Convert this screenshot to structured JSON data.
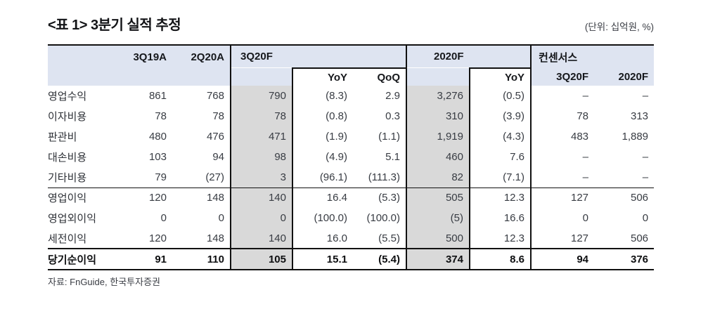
{
  "title": "<표 1> 3분기 실적 추정",
  "unit_note": "(단위: 십억원, %)",
  "source_note": "자료: FnGuide, 한국투자증권",
  "colors": {
    "header_bg": "#dee4f1",
    "highlight_col_bg": "#d9d9d9",
    "border": "#111111"
  },
  "table": {
    "group_headers": {
      "q3_19a": "3Q19A",
      "q2_20a": "2Q20A",
      "q3_20f": "3Q20F",
      "fy2020f": "2020F",
      "consensus": "컨센서스"
    },
    "sub_headers": {
      "yoy_q": "YoY",
      "qoq": "QoQ",
      "yoy_fy": "YoY",
      "cons_3q20f": "3Q20F",
      "cons_2020f": "2020F"
    },
    "rows": [
      {
        "label": "영업수익",
        "values": [
          "861",
          "768",
          "790",
          "(8.3)",
          "2.9",
          "3,276",
          "(0.5)",
          "–",
          "–"
        ]
      },
      {
        "label": "이자비용",
        "values": [
          "78",
          "78",
          "78",
          "(0.8)",
          "0.3",
          "310",
          "(3.9)",
          "78",
          "313"
        ]
      },
      {
        "label": "판관비",
        "values": [
          "480",
          "476",
          "471",
          "(1.9)",
          "(1.1)",
          "1,919",
          "(4.3)",
          "483",
          "1,889"
        ]
      },
      {
        "label": "대손비용",
        "values": [
          "103",
          "94",
          "98",
          "(4.9)",
          "5.1",
          "460",
          "7.6",
          "–",
          "–"
        ]
      },
      {
        "label": "기타비용",
        "values": [
          "79",
          "(27)",
          "3",
          "(96.1)",
          "(111.3)",
          "82",
          "(7.1)",
          "–",
          "–"
        ]
      },
      {
        "label": "영업이익",
        "values": [
          "120",
          "148",
          "140",
          "16.4",
          "(5.3)",
          "505",
          "12.3",
          "127",
          "506"
        ]
      },
      {
        "label": "영업외이익",
        "values": [
          "0",
          "0",
          "0",
          "(100.0)",
          "(100.0)",
          "(5)",
          "16.6",
          "0",
          "0"
        ]
      },
      {
        "label": "세전이익",
        "values": [
          "120",
          "148",
          "140",
          "16.0",
          "(5.5)",
          "500",
          "12.3",
          "127",
          "506"
        ]
      },
      {
        "label": "당기순이익",
        "values": [
          "91",
          "110",
          "105",
          "15.1",
          "(5.4)",
          "374",
          "8.6",
          "94",
          "376"
        ]
      }
    ]
  }
}
